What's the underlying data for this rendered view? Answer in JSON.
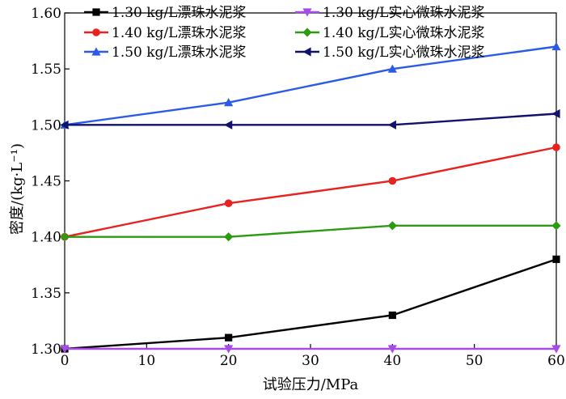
{
  "chart_data": {
    "type": "line",
    "xlabel": "试验压力/MPa",
    "ylabel": "密度/(kg·L⁻¹)",
    "xlim": [
      0,
      60
    ],
    "ylim": [
      1.3,
      1.6
    ],
    "x": [
      0,
      20,
      40,
      60
    ],
    "x_ticks": [
      0,
      10,
      20,
      30,
      40,
      50,
      60
    ],
    "x_tick_labels": [
      "0",
      "10",
      "20",
      "30",
      "40",
      "50",
      "60"
    ],
    "y_ticks": [
      1.3,
      1.35,
      1.4,
      1.45,
      1.5,
      1.55,
      1.6
    ],
    "y_tick_labels": [
      "1.30",
      "1.35",
      "1.40",
      "1.45",
      "1.50",
      "1.55",
      "1.60"
    ],
    "legend_position": "top",
    "series": [
      {
        "name": "1.30 kg/L漂珠水泥浆",
        "values": [
          1.3,
          1.31,
          1.33,
          1.38
        ],
        "color": "#000000",
        "marker": "square"
      },
      {
        "name": "1.40 kg/L漂珠水泥浆",
        "values": [
          1.4,
          1.43,
          1.45,
          1.48
        ],
        "color": "#e8221f",
        "marker": "circle"
      },
      {
        "name": "1.50 kg/L漂珠水泥浆",
        "values": [
          1.5,
          1.52,
          1.55,
          1.57
        ],
        "color": "#2b5be6",
        "marker": "triangle-up"
      },
      {
        "name": "1.30 kg/L实心微珠水泥浆",
        "values": [
          1.3,
          1.3,
          1.3,
          1.3
        ],
        "color": "#a64be8",
        "marker": "triangle-down"
      },
      {
        "name": "1.40 kg/L实心微珠水泥浆",
        "values": [
          1.4,
          1.4,
          1.41,
          1.41
        ],
        "color": "#2e9a12",
        "marker": "diamond"
      },
      {
        "name": "1.50 kg/L实心微珠水泥浆",
        "values": [
          1.5,
          1.5,
          1.5,
          1.51
        ],
        "color": "#11116e",
        "marker": "triangle-left"
      }
    ]
  }
}
